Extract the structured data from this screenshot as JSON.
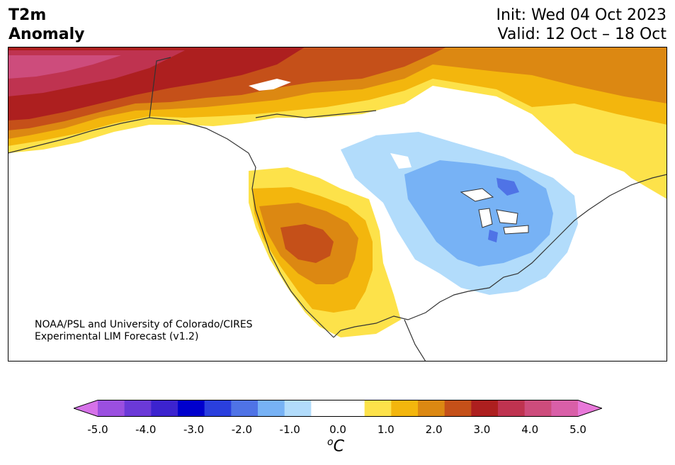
{
  "title": {
    "left": "T2m\nAnomaly",
    "init": "Init: Wed 04 Oct 2023",
    "valid": "Valid: 12 Oct – 18 Oct"
  },
  "credit": {
    "line1": "NOAA/PSL and University of Colorado/CIRES",
    "line2": "Experimental LIM Forecast (v1.2)"
  },
  "colorbar": {
    "ticks": [
      "-5.0",
      "-4.0",
      "-3.0",
      "-2.0",
      "-1.0",
      "0.0",
      "1.0",
      "2.0",
      "3.0",
      "4.0",
      "5.0"
    ],
    "unit_base": "C",
    "unit_sup": "o",
    "colors": [
      "#d672e9",
      "#9b4fe0",
      "#6b39d8",
      "#3c23cf",
      "#0000cd",
      "#2a3fde",
      "#4f73e6",
      "#77b2f5",
      "#b2dcfb",
      "#ffffff",
      "#ffffff",
      "#fde24a",
      "#f3b60d",
      "#dc8812",
      "#c55019",
      "#ad1f1f",
      "#bf3350",
      "#cd4c7c",
      "#d95fa8",
      "#e878d9"
    ]
  }
}
